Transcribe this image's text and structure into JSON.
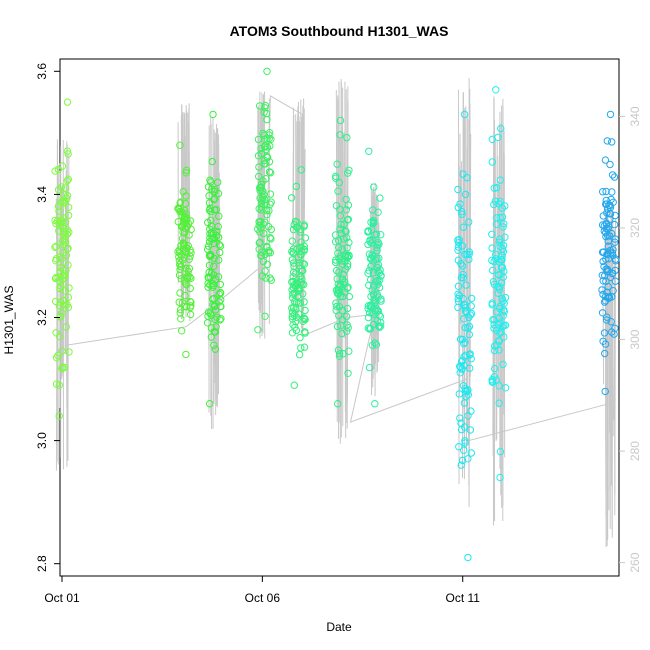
{
  "chart_data": {
    "type": "scatter",
    "title": "ATOM3 Southbound H1301_WAS",
    "xlabel": "Date",
    "ylabel": "H1301_WAS",
    "x_ticks": [
      "Oct 01",
      "Oct 06",
      "Oct 11"
    ],
    "x_tick_days": [
      1,
      6,
      11
    ],
    "xlim": [
      0.95,
      14.9
    ],
    "ylim": [
      2.78,
      3.62
    ],
    "y_ticks": [
      2.8,
      3.0,
      3.2,
      3.4,
      3.6
    ],
    "y2_ticks": [
      260,
      280,
      300,
      320,
      340
    ],
    "y2lim": [
      257.6,
      350.3
    ],
    "grid": false,
    "colors": {
      "secondary_line": "#c8c8c8",
      "right_axis": "#c8c8c8",
      "axis": "#000000"
    },
    "clusters": [
      {
        "day": 1.0,
        "min": 3.04,
        "max": 3.55,
        "color": "#7cfc3c",
        "line_min": 2.95,
        "line_max": 3.49
      },
      {
        "day": 4.05,
        "min": 3.14,
        "max": 3.48,
        "color": "#55f03a",
        "line_min": 3.19,
        "line_max": 3.55
      },
      {
        "day": 4.8,
        "min": 3.06,
        "max": 3.53,
        "color": "#3cf03c",
        "line_min": 3.01,
        "line_max": 3.53
      },
      {
        "day": 6.05,
        "min": 3.18,
        "max": 3.6,
        "color": "#3ef060",
        "line_min": 3.16,
        "line_max": 3.57
      },
      {
        "day": 6.9,
        "min": 3.09,
        "max": 3.44,
        "color": "#33f07a",
        "line_min": 3.17,
        "line_max": 3.56
      },
      {
        "day": 8.0,
        "min": 3.06,
        "max": 3.52,
        "color": "#2ef089",
        "line_min": 2.97,
        "line_max": 3.6
      },
      {
        "day": 8.8,
        "min": 3.06,
        "max": 3.47,
        "color": "#2cf0a0",
        "line_min": 3.07,
        "line_max": 3.42
      },
      {
        "day": 11.05,
        "min": 2.81,
        "max": 3.53,
        "color": "#1ee8f0",
        "line_min": 2.89,
        "line_max": 3.59
      },
      {
        "day": 11.9,
        "min": 2.94,
        "max": 3.57,
        "color": "#1ef0ee",
        "line_min": 2.86,
        "line_max": 3.56
      },
      {
        "day": 14.65,
        "min": 3.08,
        "max": 3.53,
        "color": "#23a8ee",
        "line_min": 2.82,
        "line_max": 3.39
      }
    ],
    "trend_line": [
      {
        "day": 1.1,
        "value": 3.155
      },
      {
        "day": 4.1,
        "value": 3.185
      },
      {
        "day": 4.8,
        "value": 3.22
      },
      {
        "day": 6.1,
        "value": 3.29
      },
      {
        "day": 6.2,
        "value": 3.56
      },
      {
        "day": 7.0,
        "value": 3.53
      },
      {
        "day": 7.0,
        "value": 3.17
      },
      {
        "day": 8.1,
        "value": 3.2
      },
      {
        "day": 8.8,
        "value": 3.205
      },
      {
        "day": 8.2,
        "value": 3.03
      },
      {
        "day": 11.1,
        "value": 3.1
      },
      {
        "day": 11.15,
        "value": 3.0
      },
      {
        "day": 14.65,
        "value": 3.06
      }
    ]
  }
}
